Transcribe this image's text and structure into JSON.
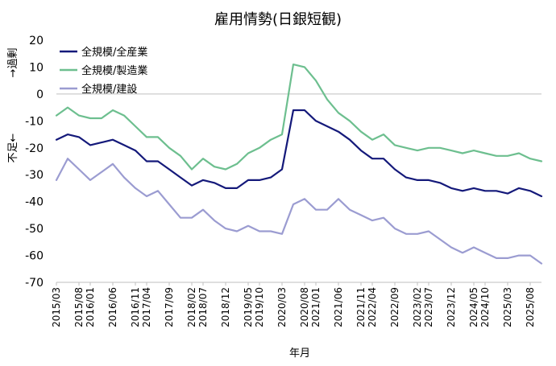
{
  "chart_data": {
    "type": "line",
    "title": "雇用情勢(日銀短観)",
    "xlabel": "年月",
    "ylabel_bottom": "不足←",
    "ylabel_top": "→過剰",
    "ylim": [
      -70,
      20
    ],
    "yticks": [
      20,
      10,
      0,
      -10,
      -20,
      -30,
      -40,
      -50,
      -60,
      -70
    ],
    "legend_position": "top-left",
    "grid": false,
    "x": [
      "2015/03",
      "2015/06",
      "2015/09",
      "2015/12",
      "2016/03",
      "2016/06",
      "2016/09",
      "2016/12",
      "2017/03",
      "2017/06",
      "2017/09",
      "2017/12",
      "2018/03",
      "2018/06",
      "2018/09",
      "2018/12",
      "2019/03",
      "2019/06",
      "2019/09",
      "2019/12",
      "2020/03",
      "2020/06",
      "2020/09",
      "2020/12",
      "2021/03",
      "2021/06",
      "2021/09",
      "2021/12",
      "2022/03",
      "2022/06",
      "2022/09",
      "2022/12",
      "2023/03",
      "2023/06",
      "2023/09",
      "2023/12",
      "2024/03",
      "2024/06",
      "2024/09",
      "2024/12",
      "2025/03",
      "2025/06",
      "2025/09",
      "2025/12"
    ],
    "x_tick_labels": [
      "2015/03",
      "2015/08",
      "2016/01",
      "2016/06",
      "2016/11",
      "2017/04",
      "2017/09",
      "2018/02",
      "2018/07",
      "2018/12",
      "2019/05",
      "2019/10",
      "2020/03",
      "2020/08",
      "2021/01",
      "2021/06",
      "2021/11",
      "2022/04",
      "2022/09",
      "2023/02",
      "2023/07",
      "2023/12",
      "2024/05",
      "2024/10",
      "2025/03",
      "2025/08"
    ],
    "series": [
      {
        "name": "全規模/全産業",
        "color": "#14197a",
        "values": [
          -17,
          -15,
          -16,
          -19,
          -18,
          -17,
          -19,
          -21,
          -25,
          -25,
          -28,
          -31,
          -34,
          -32,
          -33,
          -35,
          -35,
          -32,
          -32,
          -31,
          -28,
          -6,
          -6,
          -10,
          -12,
          -14,
          -17,
          -21,
          -24,
          -24,
          -28,
          -31,
          -32,
          -32,
          -33,
          -35,
          -36,
          -35,
          -36,
          -36,
          -37,
          -35,
          -36,
          -38
        ]
      },
      {
        "name": "全規模/製造業",
        "color": "#6dbf8f",
        "values": [
          -8,
          -5,
          -8,
          -9,
          -9,
          -6,
          -8,
          -12,
          -16,
          -16,
          -20,
          -23,
          -28,
          -24,
          -27,
          -28,
          -26,
          -22,
          -20,
          -17,
          -15,
          11,
          10,
          5,
          -2,
          -7,
          -10,
          -14,
          -17,
          -15,
          -19,
          -20,
          -21,
          -20,
          -20,
          -21,
          -22,
          -21,
          -22,
          -23,
          -23,
          -22,
          -24,
          -25
        ]
      },
      {
        "name": "全規模/建設",
        "color": "#9b9cd1",
        "values": [
          -32,
          -24,
          -28,
          -32,
          -29,
          -26,
          -31,
          -35,
          -38,
          -36,
          -41,
          -46,
          -46,
          -43,
          -47,
          -50,
          -51,
          -49,
          -51,
          -51,
          -52,
          -41,
          -39,
          -43,
          -43,
          -39,
          -43,
          -45,
          -47,
          -46,
          -50,
          -52,
          -52,
          -51,
          -54,
          -57,
          -59,
          -57,
          -59,
          -61,
          -61,
          -60,
          -60,
          -63
        ]
      }
    ]
  }
}
